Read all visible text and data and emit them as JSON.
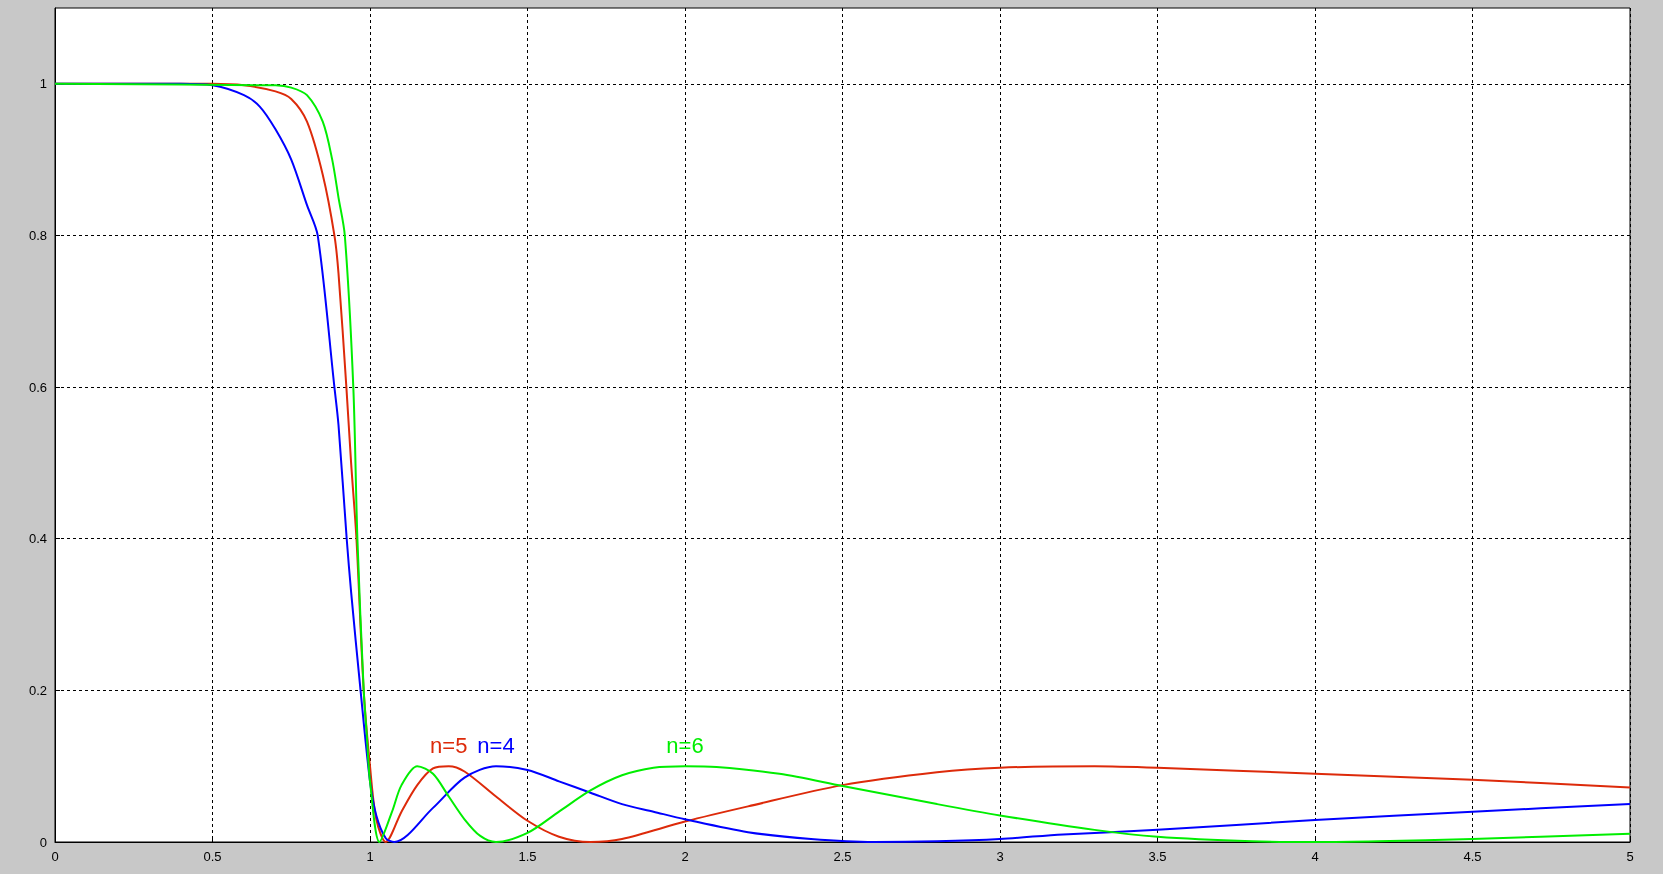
{
  "chart_data": {
    "type": "line",
    "xlim": [
      0,
      5
    ],
    "xticks": [
      0,
      0.5,
      1,
      1.5,
      2,
      2.5,
      3,
      3.5,
      4,
      4.5,
      5
    ],
    "ylim": [
      0,
      1.1
    ],
    "yticks": [
      0,
      0.2,
      0.4,
      0.6,
      0.8,
      1
    ],
    "grid": true,
    "legend": false,
    "marker": "none",
    "line_style": "solid",
    "series": [
      {
        "name": "n=5",
        "color": "#dd2a0a",
        "x": [
          0,
          0.5,
          0.6,
          0.7,
          0.75,
          0.8,
          0.85,
          0.887,
          0.9,
          0.925,
          0.94,
          0.957,
          0.98,
          1.0,
          1.02,
          1.05,
          1.1,
          1.15,
          1.2,
          1.25,
          1.3,
          1.4,
          1.5,
          1.6,
          1.7,
          1.8,
          2.0,
          2.2,
          2.5,
          2.8,
          3.0,
          3.3,
          3.5,
          4.0,
          4.5,
          5.0
        ],
        "values": [
          1,
          1,
          0.998,
          0.99,
          0.98,
          0.95,
          0.88,
          0.8,
          0.75,
          0.6,
          0.5,
          0.4,
          0.2,
          0.1,
          0.03,
          0,
          0.04,
          0.075,
          0.097,
          0.1,
          0.093,
          0.06,
          0.028,
          0.007,
          0,
          0.004,
          0.027,
          0.047,
          0.075,
          0.092,
          0.098,
          0.1,
          0.098,
          0.09,
          0.082,
          0.072
        ]
      },
      {
        "name": "n=4",
        "color": "#0000ff",
        "x": [
          0,
          0.4,
          0.5,
          0.6,
          0.65,
          0.7,
          0.75,
          0.8,
          0.834,
          0.887,
          0.9,
          0.926,
          0.94,
          0.97,
          1.0,
          1.02,
          1.05,
          1.077,
          1.2,
          1.3,
          1.4,
          1.5,
          1.6,
          1.7,
          1.8,
          1.9,
          2.0,
          2.2,
          2.4,
          2.6,
          2.8,
          3.0,
          3.2,
          3.5,
          4.0,
          4.5,
          5.0
        ],
        "values": [
          1,
          1,
          0.998,
          0.985,
          0.97,
          0.94,
          0.9,
          0.84,
          0.8,
          0.6,
          0.55,
          0.4,
          0.33,
          0.2,
          0.08,
          0.035,
          0.005,
          0,
          0.045,
          0.085,
          0.1,
          0.095,
          0.08,
          0.065,
          0.05,
          0.04,
          0.03,
          0.013,
          0.004,
          0,
          0.001,
          0.004,
          0.01,
          0.016,
          0.029,
          0.04,
          0.05
        ]
      },
      {
        "name": "n=6",
        "color": "#00ee00",
        "x": [
          0,
          0.7,
          0.75,
          0.8,
          0.85,
          0.88,
          0.9,
          0.92,
          0.947,
          0.96,
          0.98,
          0.99,
          1.0,
          1.03,
          1.07,
          1.1,
          1.15,
          1.2,
          1.25,
          1.3,
          1.35,
          1.4,
          1.5,
          1.6,
          1.7,
          1.8,
          1.9,
          2.0,
          2.1,
          2.3,
          2.5,
          2.8,
          3.0,
          3.3,
          3.5,
          3.8,
          4.0,
          4.2,
          4.5,
          5.0
        ],
        "values": [
          1,
          0.998,
          0.995,
          0.985,
          0.95,
          0.9,
          0.85,
          0.8,
          0.6,
          0.4,
          0.2,
          0.14,
          0.08,
          0,
          0.04,
          0.075,
          0.1,
          0.09,
          0.06,
          0.03,
          0.008,
          0,
          0.012,
          0.04,
          0.068,
          0.088,
          0.098,
          0.1,
          0.099,
          0.09,
          0.074,
          0.05,
          0.035,
          0.016,
          0.007,
          0.001,
          0,
          0.001,
          0.004,
          0.011
        ]
      }
    ]
  }
}
